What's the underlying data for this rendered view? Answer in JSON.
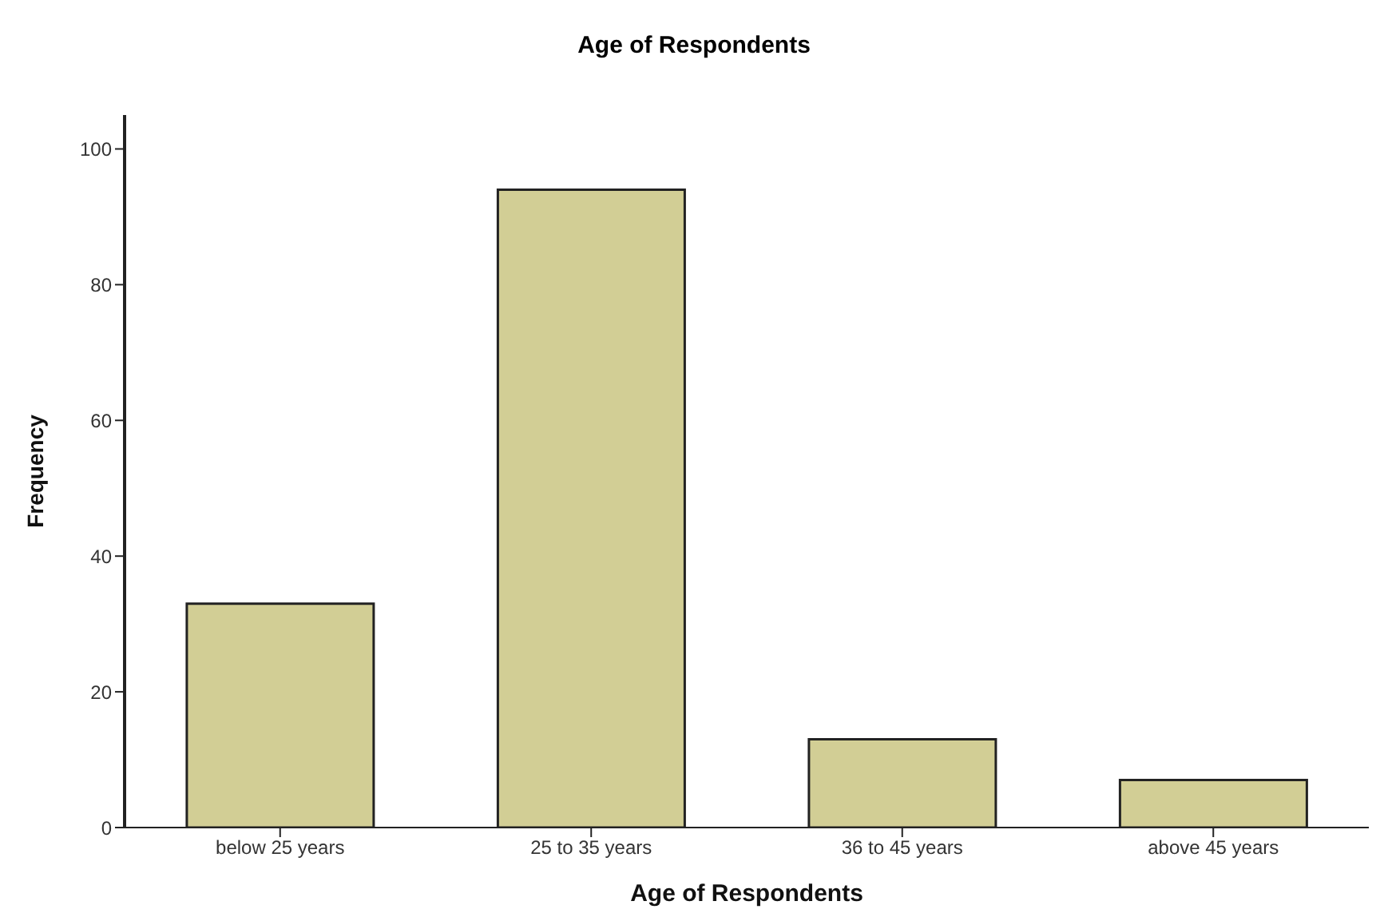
{
  "chart_data": {
    "type": "bar",
    "title": "Age of Respondents",
    "xlabel": "Age of Respondents",
    "ylabel": "Frequency",
    "categories": [
      "below 25 years",
      "25 to 35 years",
      "36 to 45 years",
      "above 45 years"
    ],
    "values": [
      33,
      94,
      13,
      7
    ],
    "color": "#d2ce95",
    "ylim": [
      0,
      105
    ],
    "yticks": [
      0,
      20,
      40,
      60,
      80,
      100
    ],
    "grid": false
  }
}
